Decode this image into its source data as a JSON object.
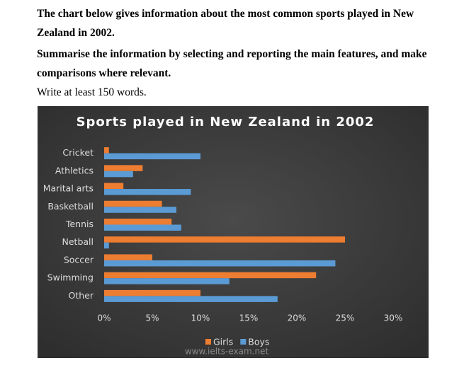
{
  "prompt": {
    "lines": [
      "The chart below gives information about the most common sports played in New",
      "Zealand in 2002.",
      "Summarise the information by selecting and reporting the main features, and make",
      "comparisons where relevant."
    ],
    "instruction": "Write at least 150 words."
  },
  "chart_data": {
    "type": "barh",
    "title": "Sports played in New Zealand in 2002",
    "categories": [
      "Cricket",
      "Athletics",
      "Marital arts",
      "Basketball",
      "Tennis",
      "Netball",
      "Soccer",
      "Swimming",
      "Other"
    ],
    "series": [
      {
        "name": "Girls",
        "color": "#ed7d31",
        "values": [
          0.5,
          4,
          2,
          6,
          7,
          25,
          5,
          22,
          10
        ]
      },
      {
        "name": "Boys",
        "color": "#5b9bd5",
        "values": [
          10,
          3,
          9,
          7.5,
          8,
          0.5,
          24,
          13,
          18
        ]
      }
    ],
    "xlim": [
      0,
      30
    ],
    "xticks": [
      {
        "value": 0,
        "label": "0%"
      },
      {
        "value": 5,
        "label": "5%"
      },
      {
        "value": 10,
        "label": "10%"
      },
      {
        "value": 15,
        "label": "15%"
      },
      {
        "value": 20,
        "label": "20%"
      },
      {
        "value": 25,
        "label": "25%"
      },
      {
        "value": 30,
        "label": "30%"
      }
    ],
    "grid": false,
    "legend": "bottom",
    "watermark": "www.ielts-exam.net"
  }
}
